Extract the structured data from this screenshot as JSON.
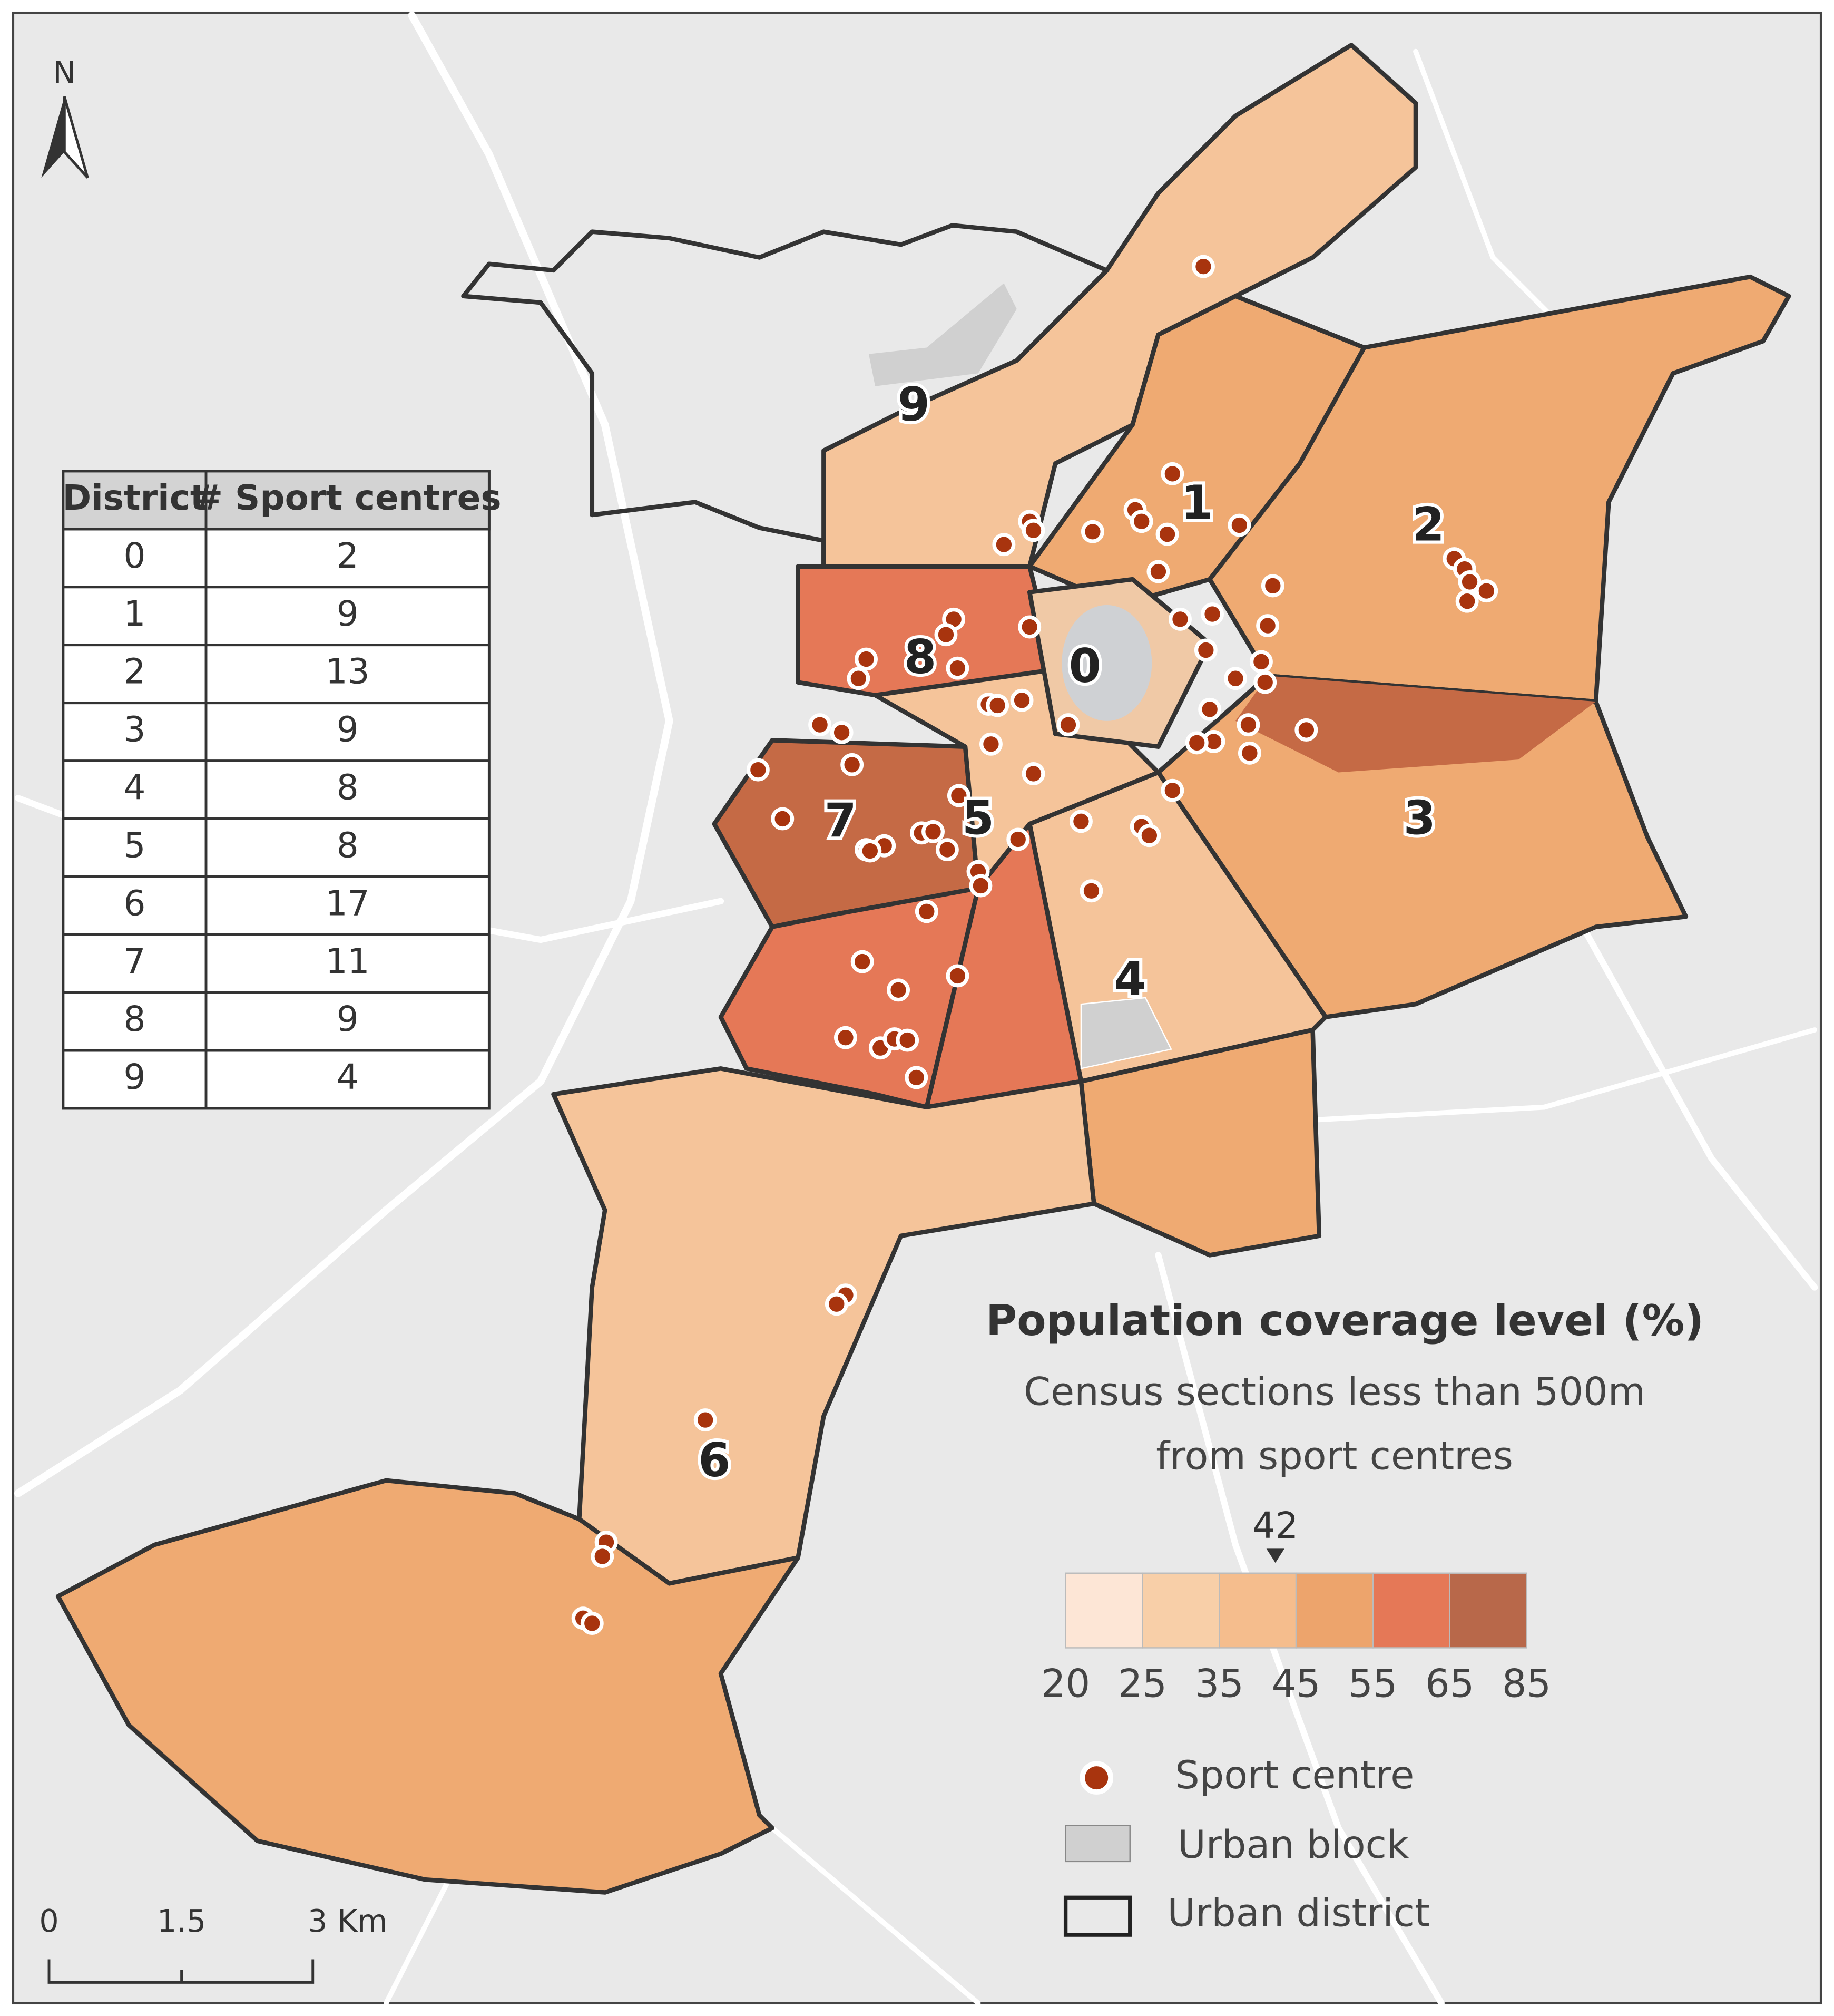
{
  "north_label": "N",
  "districts": {
    "labels": [
      "0",
      "1",
      "2",
      "3",
      "4",
      "5",
      "6",
      "7",
      "8",
      "9"
    ]
  },
  "table": {
    "header": [
      "District",
      "# Sport centres"
    ],
    "rows": [
      [
        "0",
        "2"
      ],
      [
        "1",
        "9"
      ],
      [
        "2",
        "13"
      ],
      [
        "3",
        "9"
      ],
      [
        "4",
        "8"
      ],
      [
        "5",
        "8"
      ],
      [
        "6",
        "17"
      ],
      [
        "7",
        "11"
      ],
      [
        "8",
        "9"
      ],
      [
        "9",
        "4"
      ]
    ]
  },
  "legend": {
    "title": "Population coverage level (%)",
    "subtitle": [
      "Census sections less than 500m",
      "from sport centres"
    ],
    "marker": "42",
    "breaks": [
      "20",
      "25",
      "35",
      "45",
      "55",
      "65",
      "85"
    ],
    "colors": [
      "#fde6d6",
      "#f8cfa8",
      "#f5bd8d",
      "#eda46c",
      "#e57857",
      "#b8684a"
    ],
    "items": [
      "Sport centre",
      "Urban block",
      "Urban district"
    ]
  },
  "scale_bar": [
    "0",
    "1.5",
    "3 Km"
  ]
}
